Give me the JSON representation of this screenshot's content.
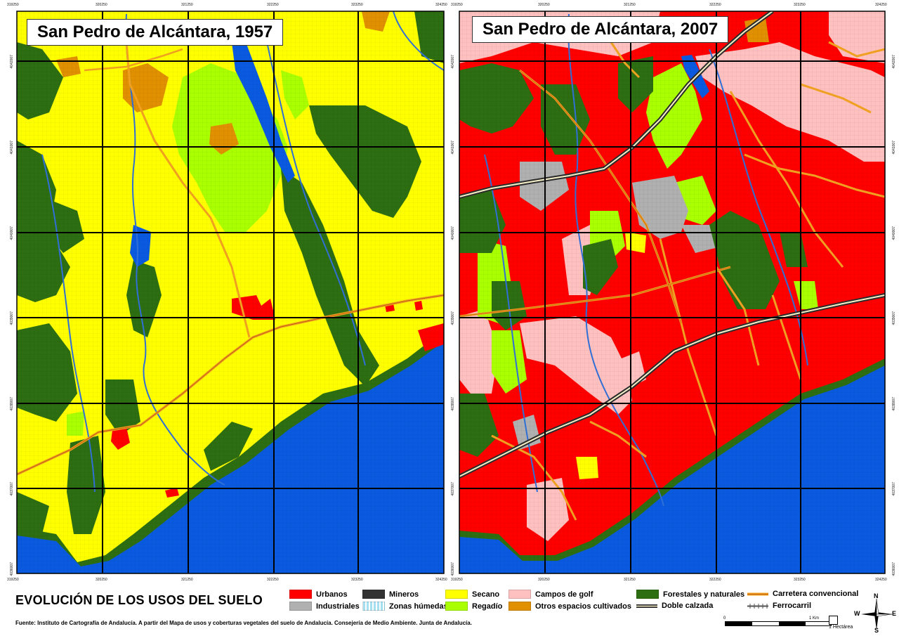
{
  "maps": [
    {
      "title": "San Pedro de Alcántara, 1957",
      "x_ticks": [
        "319250",
        "320250",
        "321250",
        "322250",
        "323250",
        "324250"
      ],
      "y_ticks": [
        "4042007",
        "4041007",
        "4040007",
        "4039007",
        "4038007",
        "4037007",
        "4036007"
      ]
    },
    {
      "title": "San Pedro de Alcántara, 2007",
      "x_ticks": [
        "319250",
        "320250",
        "321250",
        "322250",
        "323250",
        "324250"
      ],
      "y_ticks": [
        "4042007",
        "4041007",
        "4040007",
        "4039007",
        "4038007",
        "4037007",
        "4036007"
      ]
    }
  ],
  "legend": {
    "title": "EVOLUCIÓN DE LOS USOS DEL SUELO",
    "items": [
      {
        "label": "Urbanos",
        "color": "#ff0000"
      },
      {
        "label": "Industriales",
        "color": "#b0b0b0"
      },
      {
        "label": "Mineros",
        "color": "#333333"
      },
      {
        "label": "Zonas húmedas",
        "color": "#a6e0f0"
      },
      {
        "label": "Secano",
        "color": "#ffff00"
      },
      {
        "label": "Regadío",
        "color": "#aaff00"
      },
      {
        "label": "Campos de golf",
        "color": "#ffc0c0"
      },
      {
        "label": "Otros espacios cultivados",
        "color": "#e09000"
      },
      {
        "label": "Forestales y naturales",
        "color": "#2e6e12"
      },
      {
        "label": "Doble calzada",
        "color": "#2b2b2b"
      },
      {
        "label": "Carretera convencional",
        "color": "#f0a020"
      },
      {
        "label": "Ferrocarril",
        "color": "#555555"
      }
    ]
  },
  "source": "Fuente: Instituto de Cartografía de Andalucía. A partir del Mapa de usos y coberturas vegetales del suelo de Andalucía. Consejería de Medio Ambiente. Junta de Andalucía.",
  "scale": {
    "zero": "0",
    "one_km": "1 Km",
    "hectare": "1 Hectárea"
  },
  "compass": {
    "n": "N",
    "s": "S",
    "e": "E",
    "w": "W"
  },
  "colors": {
    "urbanos": "#ff0000",
    "secano": "#ffff00",
    "regadio": "#aaff00",
    "forestal": "#2e6e12",
    "golf": "#ffc0c0",
    "otros": "#e09000",
    "industrial": "#b0b0b0",
    "agua": "#0a5ae0",
    "rio": "#2f6fd6"
  }
}
